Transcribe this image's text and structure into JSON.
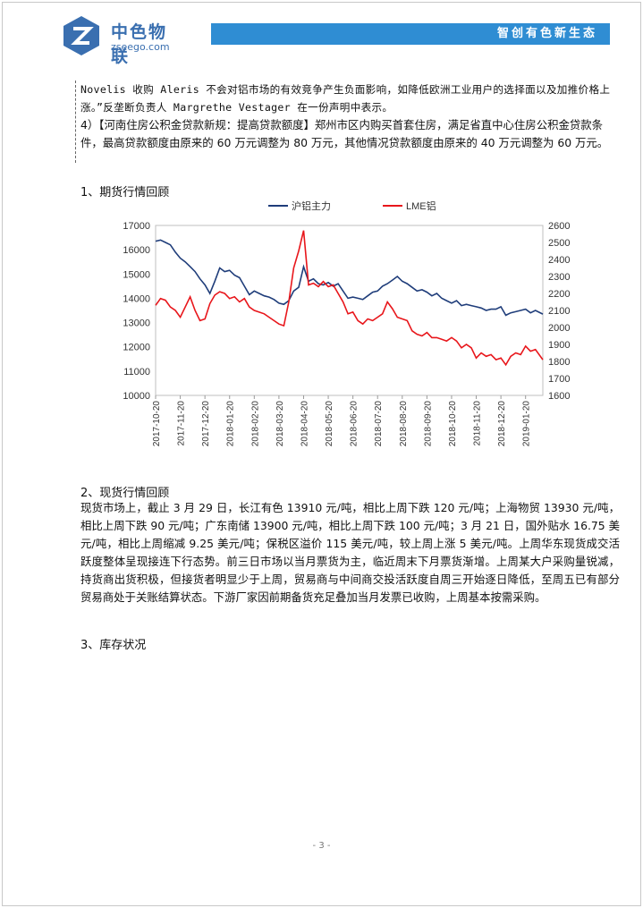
{
  "header": {
    "logo_cn": "中色物联",
    "logo_en": "zseego.com",
    "banner": "智创有色新生态"
  },
  "body": {
    "para1": "Novelis 收购 Aleris 不会对铝市场的有效竞争产生负面影响，如降低欧洲工业用户的选择面以及加推价格上涨。”反垄断负责人 Margrethe Vestager 在一份声明中表示。",
    "para2": "4）【河南住房公积金贷款新规：提高贷款额度】郑州市区内购买首套住房，满足省直中心住房公积金贷款条件，最高贷款额度由原来的 60 万元调整为 80 万元，其他情况贷款额度由原来的 40 万元调整为 60 万元。",
    "section1": "1、期货行情回顾",
    "section2": "2、现货行情回顾",
    "para3": "现货市场上，截止 3 月 29 日，长江有色 13910 元/吨，相比上周下跌 120 元/吨；上海物贸 13930 元/吨，相比上周下跌 90 元/吨；广东南储 13900 元/吨，相比上周下跌 100 元/吨；3 月 21 日，国外贴水 16.75 美元/吨，相比上周缩减 9.25 美元/吨；保税区溢价 115 美元/吨，较上周上涨 5 美元/吨。上周华东现货成交活跃度整体呈现接连下行态势。前三日市场以当月票货为主，临近周末下月票货渐增。上周某大户采购量锐减，持货商出货积极，但接货者明显少于上周，贸易商与中间商交投活跃度自周三开始逐日降低，至周五已有部分贸易商处于关账结算状态。下游厂家因前期备货充足叠加当月发票已收购，上周基本按需采购。",
    "section3": "3、库存状况"
  },
  "footer": {
    "page": "- 3 -"
  },
  "colors": {
    "series1": "#1f3d7a",
    "series2": "#e8161b",
    "banner": "#2f8dd3"
  },
  "chart_data": {
    "type": "line",
    "title": "",
    "legend_position": "top",
    "x_tick_labels": [
      "2017-10-20",
      "2017-11-20",
      "2017-12-20",
      "2018-01-20",
      "2018-02-20",
      "2018-03-20",
      "2018-04-20",
      "2018-05-20",
      "2018-06-20",
      "2018-07-20",
      "2018-08-20",
      "2018-09-20",
      "2018-10-20",
      "2018-11-20",
      "2018-12-20",
      "2019-01-20"
    ],
    "y_left": {
      "min": 10000,
      "max": 17000,
      "ticks": [
        "10000",
        "11000",
        "12000",
        "13000",
        "14000",
        "15000",
        "16000",
        "17000"
      ]
    },
    "y_right": {
      "min": 1600,
      "max": 2600,
      "ticks": [
        "1600",
        "1700",
        "1800",
        "1900",
        "2000",
        "2100",
        "2200",
        "2300",
        "2400",
        "2500",
        "2600"
      ]
    },
    "series": [
      {
        "name": "沪铝主力",
        "axis": "left",
        "x": [
          0,
          0.2,
          0.4,
          0.6,
          0.8,
          1.0,
          1.2,
          1.4,
          1.6,
          1.8,
          2.0,
          2.2,
          2.4,
          2.6,
          2.8,
          3.0,
          3.2,
          3.4,
          3.6,
          3.8,
          4.0,
          4.2,
          4.4,
          4.6,
          4.8,
          5.0,
          5.2,
          5.4,
          5.6,
          5.8,
          6.0,
          6.2,
          6.4,
          6.6,
          6.8,
          7.0,
          7.2,
          7.4,
          7.6,
          7.8,
          8.0,
          8.2,
          8.4,
          8.6,
          8.8,
          9.0,
          9.2,
          9.4,
          9.6,
          9.8,
          10.0,
          10.2,
          10.4,
          10.6,
          10.8,
          11.0,
          11.2,
          11.4,
          11.6,
          11.8,
          12.0,
          12.2,
          12.4,
          12.6,
          12.8,
          13.0,
          13.2,
          13.4,
          13.6,
          13.8,
          14.0,
          14.2,
          14.4,
          14.6,
          14.8,
          15.0,
          15.2,
          15.4,
          15.7
        ],
        "y": [
          16350,
          16400,
          16300,
          16200,
          15900,
          15650,
          15500,
          15300,
          15100,
          14800,
          14550,
          14200,
          14700,
          15250,
          15100,
          15150,
          14950,
          14850,
          14500,
          14150,
          14300,
          14200,
          14100,
          14050,
          13950,
          13800,
          13750,
          13900,
          14300,
          14450,
          15300,
          14700,
          14800,
          14600,
          14550,
          14650,
          14500,
          14600,
          14300,
          14000,
          14050,
          14000,
          13950,
          14100,
          14250,
          14300,
          14500,
          14600,
          14750,
          14900,
          14700,
          14600,
          14450,
          14300,
          14350,
          14250,
          14100,
          14200,
          14000,
          13900,
          13800,
          13900,
          13700,
          13750,
          13700,
          13650,
          13600,
          13500,
          13550,
          13550,
          13650,
          13300,
          13400,
          13450,
          13500,
          13550,
          13400,
          13500,
          13350
        ]
      },
      {
        "name": "LME铝",
        "axis": "right",
        "x": [
          0,
          0.2,
          0.4,
          0.6,
          0.8,
          1.0,
          1.2,
          1.4,
          1.6,
          1.8,
          2.0,
          2.2,
          2.4,
          2.6,
          2.8,
          3.0,
          3.2,
          3.4,
          3.6,
          3.8,
          4.0,
          4.2,
          4.4,
          4.6,
          4.8,
          5.0,
          5.2,
          5.4,
          5.6,
          5.8,
          6.0,
          6.2,
          6.4,
          6.6,
          6.8,
          7.0,
          7.2,
          7.4,
          7.6,
          7.8,
          8.0,
          8.2,
          8.4,
          8.6,
          8.8,
          9.0,
          9.2,
          9.4,
          9.6,
          9.8,
          10.0,
          10.2,
          10.4,
          10.6,
          10.8,
          11.0,
          11.2,
          11.4,
          11.6,
          11.8,
          12.0,
          12.2,
          12.4,
          12.6,
          12.8,
          13.0,
          13.2,
          13.4,
          13.6,
          13.8,
          14.0,
          14.2,
          14.4,
          14.6,
          14.8,
          15.0,
          15.2,
          15.4,
          15.7
        ],
        "y": [
          2130,
          2170,
          2160,
          2120,
          2100,
          2060,
          2120,
          2180,
          2100,
          2040,
          2050,
          2140,
          2190,
          2210,
          2200,
          2170,
          2180,
          2150,
          2170,
          2120,
          2100,
          2090,
          2080,
          2060,
          2040,
          2020,
          2010,
          2150,
          2350,
          2450,
          2570,
          2250,
          2260,
          2240,
          2270,
          2240,
          2250,
          2200,
          2150,
          2080,
          2090,
          2040,
          2020,
          2050,
          2040,
          2060,
          2080,
          2150,
          2110,
          2060,
          2050,
          2040,
          1980,
          1960,
          1950,
          1970,
          1940,
          1940,
          1930,
          1920,
          1940,
          1920,
          1880,
          1900,
          1880,
          1820,
          1850,
          1830,
          1840,
          1810,
          1820,
          1780,
          1830,
          1850,
          1840,
          1890,
          1860,
          1870,
          1810
        ]
      }
    ]
  }
}
